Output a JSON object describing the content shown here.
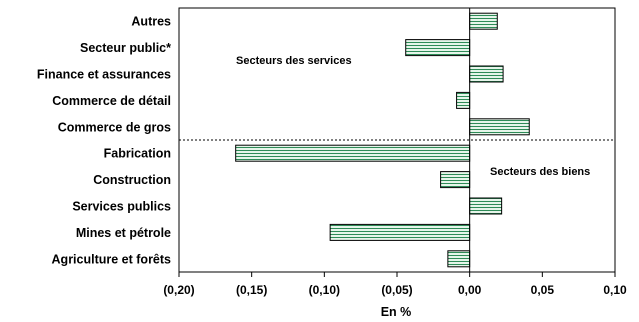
{
  "chart_data": {
    "type": "bar",
    "orientation": "horizontal",
    "title": "",
    "xlabel": "En %",
    "ylabel": "",
    "xlim": [
      -0.2,
      0.1
    ],
    "x_ticks": [
      -0.2,
      -0.15,
      -0.1,
      -0.05,
      0.0,
      0.05,
      0.1
    ],
    "x_tick_labels": [
      "(0,20)",
      "(0,15)",
      "(0,10)",
      "(0,05)",
      "0,00",
      "0,05",
      "0,10"
    ],
    "grid": false,
    "legend": "none",
    "bar_fill": "#e6f5ea",
    "bar_hatch_color": "#2e8b57",
    "categories": [
      "Autres",
      "Secteur public*",
      "Finance et assurances",
      "Commerce de détail",
      "Commerce de gros",
      "Fabrication",
      "Construction",
      "Services publics",
      "Mines et pétrole",
      "Agriculture et forêts"
    ],
    "values": [
      0.019,
      -0.044,
      0.023,
      -0.009,
      0.041,
      -0.161,
      -0.02,
      0.022,
      -0.096,
      -0.015
    ],
    "annotations": [
      {
        "text": "Secteurs des services",
        "group": "services"
      },
      {
        "text": "Secteurs des biens",
        "group": "biens"
      }
    ]
  }
}
